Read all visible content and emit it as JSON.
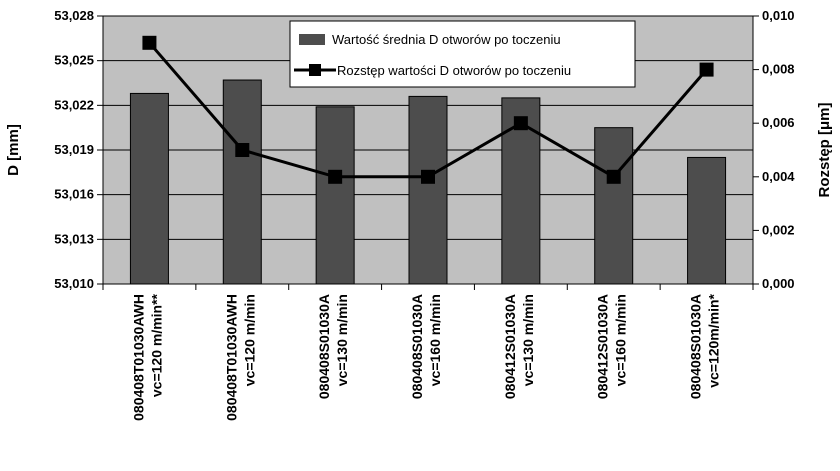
{
  "chart_data": {
    "type": "bar",
    "categories": [
      [
        "080408T01030AWH",
        "vc=120 m/min**"
      ],
      [
        "080408T01030AWH",
        "vc=120 m/min"
      ],
      [
        "080408S01030A",
        "vc=130 m/min"
      ],
      [
        "080408S01030A",
        "vc=160 m/min"
      ],
      [
        "080412S01030A",
        "vc=130 m/min"
      ],
      [
        "080412S01030A",
        "vc=160 m/min"
      ],
      [
        "080408S01030A",
        "vc=120m/min*"
      ]
    ],
    "series": [
      {
        "name": "Wartość średnia D otworów po toczeniu",
        "type": "bar",
        "axis": "left",
        "color": "#4d4d4d",
        "values": [
          53.0228,
          53.0237,
          53.0219,
          53.0226,
          53.0225,
          53.0205,
          53.0185
        ]
      },
      {
        "name": "Rozstęp wartości D otworów po toczeniu",
        "type": "line",
        "axis": "right",
        "color": "#000000",
        "values": [
          0.009,
          0.005,
          0.004,
          0.004,
          0.006,
          0.004,
          0.008
        ]
      }
    ],
    "ylabel": "D  [mm]",
    "y2label": "Rozstęp  [μm]",
    "ylim": [
      53.01,
      53.028
    ],
    "yticks": [
      "53,028",
      "53,025",
      "53,022",
      "53,019",
      "53,016",
      "53,013",
      "53,010"
    ],
    "y2lim": [
      0.0,
      0.01
    ],
    "y2ticks": [
      "0,010",
      "0,008",
      "0,006",
      "0,004",
      "0,002",
      "0,000"
    ],
    "grid": true,
    "legend": "top-center"
  }
}
